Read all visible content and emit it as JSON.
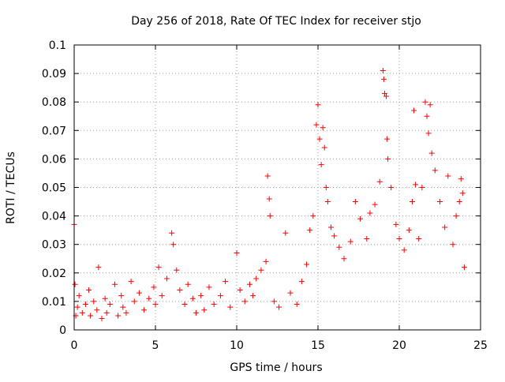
{
  "chart_data": {
    "type": "scatter",
    "title": "Day 256 of 2018, Rate Of TEC Index for receiver stjo",
    "xlabel": "GPS time / hours",
    "ylabel": "ROTI / TECUs",
    "xlim": [
      0,
      25
    ],
    "ylim": [
      0,
      0.1
    ],
    "xticks": [
      "0",
      "5",
      "10",
      "15",
      "20",
      "25"
    ],
    "yticks": [
      "0",
      "0.01",
      "0.02",
      "0.03",
      "0.04",
      "0.05",
      "0.06",
      "0.07",
      "0.08",
      "0.09",
      "0.1"
    ],
    "grid": true,
    "marker": "+",
    "series": [
      {
        "name": "ROTI",
        "color": "#ff0000",
        "points": [
          [
            0.0,
            0.037
          ],
          [
            0.05,
            0.016
          ],
          [
            0.1,
            0.005
          ],
          [
            0.2,
            0.008
          ],
          [
            0.3,
            0.012
          ],
          [
            0.5,
            0.006
          ],
          [
            0.7,
            0.009
          ],
          [
            0.9,
            0.014
          ],
          [
            1.0,
            0.005
          ],
          [
            1.2,
            0.01
          ],
          [
            1.4,
            0.007
          ],
          [
            1.5,
            0.022
          ],
          [
            1.7,
            0.004
          ],
          [
            1.9,
            0.011
          ],
          [
            2.0,
            0.006
          ],
          [
            2.2,
            0.009
          ],
          [
            2.5,
            0.016
          ],
          [
            2.7,
            0.005
          ],
          [
            2.9,
            0.012
          ],
          [
            3.0,
            0.008
          ],
          [
            3.2,
            0.006
          ],
          [
            3.5,
            0.017
          ],
          [
            3.7,
            0.01
          ],
          [
            4.0,
            0.013
          ],
          [
            4.3,
            0.007
          ],
          [
            4.6,
            0.011
          ],
          [
            4.9,
            0.015
          ],
          [
            5.0,
            0.009
          ],
          [
            5.2,
            0.022
          ],
          [
            5.4,
            0.012
          ],
          [
            5.7,
            0.018
          ],
          [
            6.0,
            0.034
          ],
          [
            6.1,
            0.03
          ],
          [
            6.3,
            0.021
          ],
          [
            6.5,
            0.014
          ],
          [
            6.8,
            0.009
          ],
          [
            7.0,
            0.016
          ],
          [
            7.3,
            0.011
          ],
          [
            7.5,
            0.006
          ],
          [
            7.8,
            0.012
          ],
          [
            8.0,
            0.007
          ],
          [
            8.3,
            0.015
          ],
          [
            8.6,
            0.009
          ],
          [
            9.0,
            0.012
          ],
          [
            9.3,
            0.017
          ],
          [
            9.6,
            0.008
          ],
          [
            10.0,
            0.027
          ],
          [
            10.2,
            0.014
          ],
          [
            10.5,
            0.01
          ],
          [
            10.8,
            0.016
          ],
          [
            11.0,
            0.012
          ],
          [
            11.2,
            0.018
          ],
          [
            11.5,
            0.021
          ],
          [
            11.8,
            0.024
          ],
          [
            11.9,
            0.054
          ],
          [
            12.0,
            0.046
          ],
          [
            12.05,
            0.04
          ],
          [
            12.3,
            0.01
          ],
          [
            12.6,
            0.008
          ],
          [
            13.0,
            0.034
          ],
          [
            13.3,
            0.013
          ],
          [
            13.7,
            0.009
          ],
          [
            14.0,
            0.017
          ],
          [
            14.3,
            0.023
          ],
          [
            14.5,
            0.035
          ],
          [
            14.7,
            0.04
          ],
          [
            14.9,
            0.072
          ],
          [
            15.0,
            0.079
          ],
          [
            15.1,
            0.067
          ],
          [
            15.2,
            0.058
          ],
          [
            15.3,
            0.071
          ],
          [
            15.4,
            0.064
          ],
          [
            15.5,
            0.05
          ],
          [
            15.6,
            0.045
          ],
          [
            15.8,
            0.036
          ],
          [
            16.0,
            0.033
          ],
          [
            16.3,
            0.029
          ],
          [
            16.6,
            0.025
          ],
          [
            17.0,
            0.031
          ],
          [
            17.3,
            0.045
          ],
          [
            17.6,
            0.039
          ],
          [
            18.0,
            0.032
          ],
          [
            18.2,
            0.041
          ],
          [
            18.5,
            0.044
          ],
          [
            18.8,
            0.052
          ],
          [
            19.0,
            0.091
          ],
          [
            19.05,
            0.088
          ],
          [
            19.1,
            0.083
          ],
          [
            19.2,
            0.082
          ],
          [
            19.25,
            0.067
          ],
          [
            19.3,
            0.06
          ],
          [
            19.5,
            0.05
          ],
          [
            19.8,
            0.037
          ],
          [
            20.0,
            0.032
          ],
          [
            20.3,
            0.028
          ],
          [
            20.6,
            0.035
          ],
          [
            20.8,
            0.045
          ],
          [
            20.9,
            0.077
          ],
          [
            21.0,
            0.051
          ],
          [
            21.2,
            0.032
          ],
          [
            21.4,
            0.05
          ],
          [
            21.6,
            0.08
          ],
          [
            21.7,
            0.075
          ],
          [
            21.8,
            0.069
          ],
          [
            21.9,
            0.079
          ],
          [
            22.0,
            0.062
          ],
          [
            22.2,
            0.056
          ],
          [
            22.5,
            0.045
          ],
          [
            22.8,
            0.036
          ],
          [
            23.0,
            0.054
          ],
          [
            23.3,
            0.03
          ],
          [
            23.5,
            0.04
          ],
          [
            23.7,
            0.045
          ],
          [
            23.8,
            0.053
          ],
          [
            23.9,
            0.048
          ],
          [
            24.0,
            0.022
          ]
        ]
      }
    ]
  }
}
